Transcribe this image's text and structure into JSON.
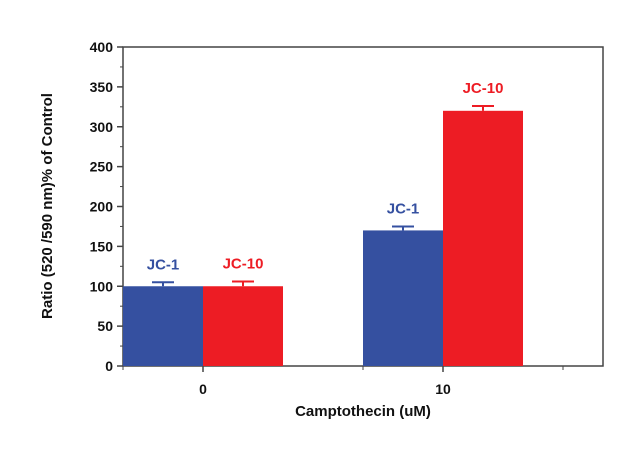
{
  "chart_data": {
    "type": "bar",
    "title": "",
    "xlabel": "Camptothecin (uM)",
    "ylabel": "Ratio (520 /590 nm)% of Control",
    "categories": [
      "0",
      "10"
    ],
    "ylim": [
      0,
      400
    ],
    "yticks": [
      "0",
      "50",
      "100",
      "150",
      "200",
      "250",
      "300",
      "350",
      "400"
    ],
    "grid": false,
    "legend": "none",
    "series": [
      {
        "name": "JC-1",
        "values": [
          100,
          170
        ],
        "errors": [
          5,
          5
        ],
        "color": "#3550a0"
      },
      {
        "name": "JC-10",
        "values": [
          100,
          320
        ],
        "errors": [
          6,
          6
        ],
        "color": "#ed1c24"
      }
    ]
  }
}
